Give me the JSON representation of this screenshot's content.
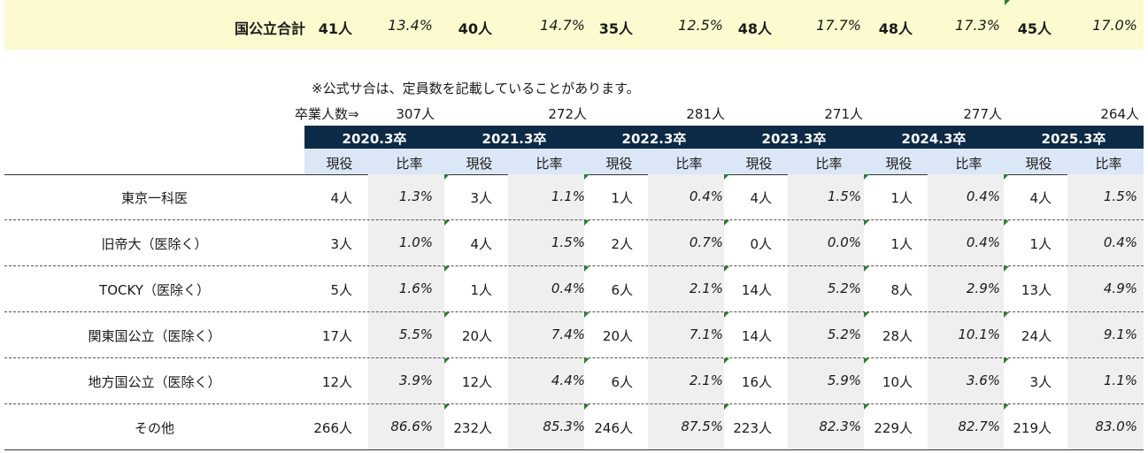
{
  "summary": {
    "label": "国公立合計",
    "values": [
      {
        "count": "41人",
        "pct": "13.4%"
      },
      {
        "count": "40人",
        "pct": "14.7%"
      },
      {
        "count": "35人",
        "pct": "12.5%"
      },
      {
        "count": "48人",
        "pct": "17.7%"
      },
      {
        "count": "48人",
        "pct": "17.3%"
      },
      {
        "count": "45人",
        "pct": "17.0%"
      }
    ]
  },
  "note": "※公式サ合は、定員数を記載していることがあります。",
  "graduates": {
    "label": "卒業人数⇒",
    "totals": [
      "307人",
      "272人",
      "281人",
      "271人",
      "277人",
      "264人"
    ]
  },
  "years": [
    "2020.3卒",
    "2021.3卒",
    "2022.3卒",
    "2023.3卒",
    "2024.3卒",
    "2025.3卒"
  ],
  "subheaders": {
    "count": "現役",
    "ratio": "比率"
  },
  "rows": [
    {
      "label": "東京一科医",
      "cells": [
        [
          "4人",
          "1.3%"
        ],
        [
          "3人",
          "1.1%"
        ],
        [
          "1人",
          "0.4%"
        ],
        [
          "4人",
          "1.5%"
        ],
        [
          "1人",
          "0.4%"
        ],
        [
          "4人",
          "1.5%"
        ]
      ]
    },
    {
      "label": "旧帝大（医除く）",
      "cells": [
        [
          "3人",
          "1.0%"
        ],
        [
          "4人",
          "1.5%"
        ],
        [
          "2人",
          "0.7%"
        ],
        [
          "0人",
          "0.0%"
        ],
        [
          "1人",
          "0.4%"
        ],
        [
          "1人",
          "0.4%"
        ]
      ]
    },
    {
      "label": "TOCKY（医除く）",
      "cells": [
        [
          "5人",
          "1.6%"
        ],
        [
          "1人",
          "0.4%"
        ],
        [
          "6人",
          "2.1%"
        ],
        [
          "14人",
          "5.2%"
        ],
        [
          "8人",
          "2.9%"
        ],
        [
          "13人",
          "4.9%"
        ]
      ]
    },
    {
      "label": "関東国公立（医除く）",
      "cells": [
        [
          "17人",
          "5.5%"
        ],
        [
          "20人",
          "7.4%"
        ],
        [
          "20人",
          "7.1%"
        ],
        [
          "14人",
          "5.2%"
        ],
        [
          "28人",
          "10.1%"
        ],
        [
          "24人",
          "9.1%"
        ]
      ]
    },
    {
      "label": "地方国公立（医除く）",
      "cells": [
        [
          "12人",
          "3.9%"
        ],
        [
          "12人",
          "4.4%"
        ],
        [
          "6人",
          "2.1%"
        ],
        [
          "16人",
          "5.9%"
        ],
        [
          "10人",
          "3.6%"
        ],
        [
          "3人",
          "1.1%"
        ]
      ]
    },
    {
      "label": "その他",
      "cells": [
        [
          "266人",
          "86.6%"
        ],
        [
          "232人",
          "85.3%"
        ],
        [
          "246人",
          "87.5%"
        ],
        [
          "223人",
          "82.3%"
        ],
        [
          "229人",
          "82.7%"
        ],
        [
          "219人",
          "83.0%"
        ]
      ]
    }
  ],
  "colors": {
    "header_bg": "#0d2a47",
    "subheader_bg": "#dbe7f7",
    "summary_bg": "#fcfbcf",
    "ratio_shade": "#efefef",
    "marker": "#2e7d32"
  }
}
